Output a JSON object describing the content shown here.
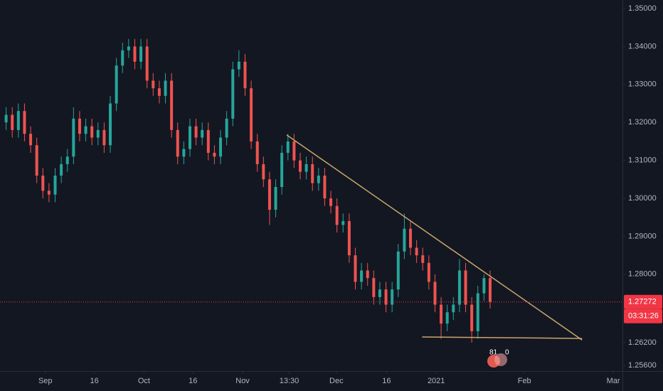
{
  "chart_data": {
    "type": "candlestick",
    "up_color": "#26a69a",
    "down_color": "#ef5350",
    "xlim": [
      0,
      101.6
    ],
    "xticks": [
      {
        "value": 7.4,
        "label": "Sep"
      },
      {
        "value": 15.4,
        "label": "16"
      },
      {
        "value": 23.5,
        "label": "Oct"
      },
      {
        "value": 31.5,
        "label": "16"
      },
      {
        "value": 39.6,
        "label": "Nov"
      },
      {
        "value": 47.2,
        "label": "13:30"
      },
      {
        "value": 54.9,
        "label": "Dec"
      },
      {
        "value": 63.1,
        "label": "16"
      },
      {
        "value": 71.2,
        "label": "2021"
      },
      {
        "value": 85.6,
        "label": "Feb"
      },
      {
        "value": 100.1,
        "label": "Mar"
      }
    ],
    "ylim": [
      1.2545,
      1.35225
    ],
    "yticks": [
      {
        "value": 1.35,
        "label": "1.35000"
      },
      {
        "value": 1.34,
        "label": "1.34000"
      },
      {
        "value": 1.33,
        "label": "1.33000"
      },
      {
        "value": 1.32,
        "label": "1.32000"
      },
      {
        "value": 1.31,
        "label": "1.31000"
      },
      {
        "value": 1.3,
        "label": "1.30000"
      },
      {
        "value": 1.29,
        "label": "1.29000"
      },
      {
        "value": 1.28,
        "label": "1.28000"
      },
      {
        "value": 1.262,
        "label": "1.26200"
      },
      {
        "value": 1.256,
        "label": "1.25600"
      }
    ],
    "x": [
      1,
      2,
      3,
      4,
      5,
      6,
      7,
      8,
      9,
      10,
      11,
      12,
      13,
      14,
      15,
      16,
      17,
      18,
      19,
      20,
      21,
      22,
      23,
      24,
      25,
      26,
      27,
      28,
      29,
      30,
      31,
      32,
      33,
      34,
      35,
      36,
      37,
      38,
      39,
      40,
      41,
      42,
      43,
      44,
      45,
      46,
      47,
      48,
      49,
      50,
      51,
      52,
      53,
      54,
      55,
      56,
      57,
      58,
      59,
      60,
      61,
      62,
      63,
      64,
      65,
      66,
      67,
      68,
      69,
      70,
      71,
      72,
      73,
      74,
      75,
      76,
      77,
      78,
      79,
      80
    ],
    "open": [
      1.32,
      1.322,
      1.318,
      1.323,
      1.317,
      1.314,
      1.306,
      1.302,
      1.301,
      1.306,
      1.309,
      1.311,
      1.321,
      1.317,
      1.319,
      1.316,
      1.318,
      1.314,
      1.325,
      1.335,
      1.339,
      1.34,
      1.336,
      1.34,
      1.331,
      1.329,
      1.327,
      1.331,
      1.318,
      1.311,
      1.313,
      1.319,
      1.316,
      1.318,
      1.312,
      1.311,
      1.316,
      1.321,
      1.334,
      1.336,
      1.329,
      1.315,
      1.309,
      1.305,
      1.297,
      1.303,
      1.312,
      1.315,
      1.31,
      1.307,
      1.309,
      1.304,
      1.306,
      1.3,
      1.298,
      1.293,
      1.294,
      1.285,
      1.278,
      1.281,
      1.279,
      1.274,
      1.276,
      1.272,
      1.276,
      1.286,
      1.292,
      1.287,
      1.285,
      1.283,
      1.278,
      1.272,
      1.267,
      1.27,
      1.272,
      1.281,
      1.272,
      1.265,
      1.275,
      1.279
    ],
    "high": [
      1.324,
      1.324,
      1.325,
      1.325,
      1.319,
      1.316,
      1.308,
      1.304,
      1.308,
      1.311,
      1.313,
      1.324,
      1.323,
      1.321,
      1.321,
      1.32,
      1.32,
      1.327,
      1.337,
      1.341,
      1.342,
      1.342,
      1.342,
      1.342,
      1.333,
      1.331,
      1.333,
      1.333,
      1.32,
      1.315,
      1.321,
      1.321,
      1.32,
      1.32,
      1.314,
      1.318,
      1.323,
      1.336,
      1.339,
      1.338,
      1.331,
      1.317,
      1.311,
      1.307,
      1.305,
      1.314,
      1.317,
      1.317,
      1.312,
      1.311,
      1.311,
      1.308,
      1.308,
      1.302,
      1.3,
      1.296,
      1.296,
      1.287,
      1.283,
      1.283,
      1.281,
      1.278,
      1.278,
      1.278,
      1.288,
      1.296,
      1.294,
      1.289,
      1.287,
      1.285,
      1.28,
      1.274,
      1.272,
      1.274,
      1.284,
      1.283,
      1.274,
      1.277,
      1.28,
      1.281
    ],
    "low": [
      1.318,
      1.316,
      1.316,
      1.315,
      1.312,
      1.304,
      1.3,
      1.299,
      1.299,
      1.304,
      1.307,
      1.309,
      1.315,
      1.315,
      1.314,
      1.314,
      1.312,
      1.312,
      1.323,
      1.333,
      1.337,
      1.334,
      1.334,
      1.329,
      1.327,
      1.325,
      1.325,
      1.316,
      1.309,
      1.309,
      1.311,
      1.314,
      1.314,
      1.31,
      1.309,
      1.309,
      1.314,
      1.319,
      1.332,
      1.327,
      1.313,
      1.307,
      1.303,
      1.293,
      1.295,
      1.301,
      1.31,
      1.308,
      1.305,
      1.305,
      1.302,
      1.302,
      1.298,
      1.296,
      1.291,
      1.291,
      1.283,
      1.276,
      1.276,
      1.277,
      1.272,
      1.272,
      1.27,
      1.27,
      1.274,
      1.284,
      1.285,
      1.283,
      1.281,
      1.276,
      1.27,
      1.263,
      1.265,
      1.268,
      1.27,
      1.27,
      1.262,
      1.263,
      1.273,
      1.271
    ],
    "close": [
      1.322,
      1.318,
      1.323,
      1.317,
      1.314,
      1.306,
      1.302,
      1.301,
      1.306,
      1.309,
      1.311,
      1.321,
      1.317,
      1.319,
      1.316,
      1.318,
      1.314,
      1.325,
      1.335,
      1.339,
      1.34,
      1.336,
      1.34,
      1.331,
      1.329,
      1.327,
      1.331,
      1.318,
      1.311,
      1.313,
      1.319,
      1.316,
      1.318,
      1.312,
      1.311,
      1.316,
      1.321,
      1.334,
      1.336,
      1.329,
      1.315,
      1.309,
      1.305,
      1.297,
      1.303,
      1.312,
      1.315,
      1.31,
      1.307,
      1.309,
      1.304,
      1.306,
      1.3,
      1.298,
      1.293,
      1.294,
      1.285,
      1.278,
      1.281,
      1.279,
      1.274,
      1.276,
      1.272,
      1.276,
      1.286,
      1.292,
      1.287,
      1.285,
      1.283,
      1.278,
      1.272,
      1.267,
      1.27,
      1.272,
      1.281,
      1.272,
      1.265,
      1.275,
      1.279,
      1.27272
    ],
    "trendline_color": "#c9a66b",
    "trendlines": [
      {
        "x": [
          46.8,
          95.0
        ],
        "y": [
          1.3167,
          1.2627
        ]
      },
      {
        "x": [
          68.9,
          95.0
        ],
        "y": [
          1.2635,
          1.2631
        ]
      }
    ],
    "last_price": {
      "value": 1.27272,
      "label": "1.27272"
    },
    "last_price_color": "#f23645",
    "countdown": "03:31:26",
    "badge": [
      "81",
      "0"
    ]
  }
}
